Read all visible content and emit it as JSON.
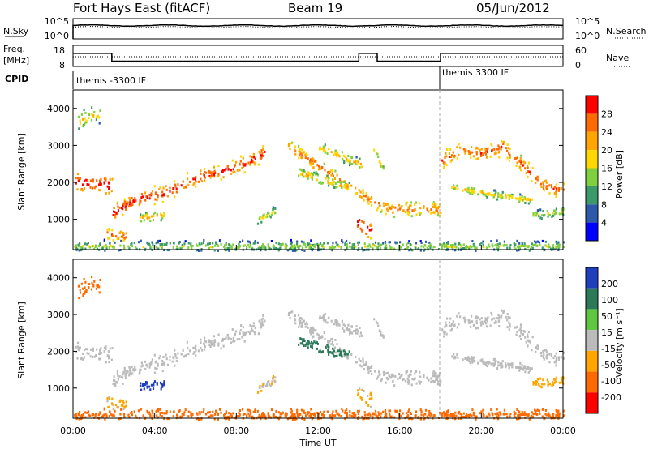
{
  "header": {
    "station": "Fort Hays East (fitACF)",
    "beam": "Beam 19",
    "date": "05/Jun/2012"
  },
  "strip": {
    "nsky_label": "N.Sky",
    "nsearch_label": "N.Search",
    "freq_label_1": "Freq.",
    "freq_label_2": "[MHz]",
    "nave_label": "Nave",
    "cpid_label": "CPID",
    "noise_left_ticks": [
      "10^5",
      "10^0"
    ],
    "noise_right_ticks": [
      "10^5",
      "10^0"
    ],
    "freq_left_ticks": [
      "18",
      "8"
    ],
    "freq_right_ticks": [
      "60",
      "0"
    ],
    "cpid_segments": [
      "themis -3300 IF",
      "themis 3300 IF"
    ]
  },
  "panels": {
    "power_ylabel": "Slant Range [km]",
    "velocity_ylabel": "Slant Range [km]",
    "yticks": [
      "4000",
      "3000",
      "2000",
      "1000"
    ],
    "xticks": [
      "00:00",
      "04:00",
      "08:00",
      "12:00",
      "16:00",
      "20:00",
      "00:00"
    ],
    "xlabel": "Time UT"
  },
  "colorbars": {
    "power": {
      "title": "Power [dB]",
      "ticks": [
        "28",
        "24",
        "20",
        "16",
        "12",
        "8",
        "4"
      ],
      "colors": [
        "#ff0000",
        "#ff6a00",
        "#ffa500",
        "#ffd700",
        "#7fcf3f",
        "#3c9a6a",
        "#2c5aa8",
        "#0000ff"
      ]
    },
    "velocity": {
      "title": "Velocity [m s⁻¹]",
      "ticks": [
        "200",
        "100",
        "50",
        "15",
        "-15",
        "-50",
        "-100",
        "-200"
      ],
      "colors": [
        "#1f3fbf",
        "#2a7a5a",
        "#5fc840",
        "#bbbbbb",
        "#ffa500",
        "#ff6a00",
        "#ff0000"
      ]
    }
  },
  "chart_data": {
    "type": "heatmap",
    "title": "Fort Hays East (fitACF)   Beam 19   05/Jun/2012",
    "xlabel": "Time UT",
    "ylabel": "Slant Range [km]",
    "xlim": [
      0,
      24
    ],
    "ylim": [
      180,
      4500
    ],
    "noise_range": [
      1,
      100000
    ],
    "frequency_mhz": [
      {
        "t0": 0.0,
        "t1": 1.9,
        "freq": 14.2
      },
      {
        "t0": 1.9,
        "t1": 14.0,
        "freq": 10.5
      },
      {
        "t0": 14.0,
        "t1": 14.9,
        "freq": 14.2
      },
      {
        "t0": 14.9,
        "t1": 18.0,
        "freq": 10.5
      },
      {
        "t0": 18.0,
        "t1": 24.0,
        "freq": 14.2
      }
    ],
    "cpid_transition_hour": 18.0,
    "echo_bands": [
      {
        "pts": [
          [
            0.0,
            2050
          ],
          [
            1.9,
            1950
          ]
        ],
        "width": 280,
        "power": 22,
        "velocity": -5
      },
      {
        "pts": [
          [
            1.9,
            1200
          ],
          [
            3.0,
            1550
          ],
          [
            4.5,
            1750
          ],
          [
            6.0,
            2150
          ],
          [
            8.0,
            2450
          ],
          [
            9.5,
            2850
          ]
        ],
        "width": 260,
        "power": 20,
        "velocity": -5
      },
      {
        "pts": [
          [
            1.6,
            640
          ],
          [
            2.6,
            580
          ]
        ],
        "width": 180,
        "power": 18,
        "velocity": -20
      },
      {
        "pts": [
          [
            3.2,
            1050
          ],
          [
            4.5,
            1150
          ]
        ],
        "width": 150,
        "power": 12,
        "velocity": 150
      },
      {
        "pts": [
          [
            0.2,
            3700
          ],
          [
            1.3,
            3900
          ]
        ],
        "width": 300,
        "power": 10,
        "velocity": -60
      },
      {
        "pts": [
          [
            9.0,
            1000
          ],
          [
            10.0,
            1300
          ]
        ],
        "width": 160,
        "power": 8,
        "velocity": -10
      },
      {
        "pts": [
          [
            10.5,
            3000
          ],
          [
            12.5,
            2300
          ],
          [
            14.5,
            1550
          ],
          [
            15.5,
            1300
          ],
          [
            18.0,
            1300
          ]
        ],
        "width": 230,
        "power": 16,
        "velocity": -5
      },
      {
        "pts": [
          [
            11.0,
            2300
          ],
          [
            12.5,
            2050
          ],
          [
            13.5,
            1900
          ]
        ],
        "width": 150,
        "power": 12,
        "velocity": 60
      },
      {
        "pts": [
          [
            12.0,
            3000
          ],
          [
            13.0,
            2750
          ],
          [
            14.2,
            2500
          ]
        ],
        "width": 160,
        "power": 12,
        "velocity": -5
      },
      {
        "pts": [
          [
            13.9,
            950
          ],
          [
            14.6,
            700
          ]
        ],
        "width": 220,
        "power": 24,
        "velocity": -20
      },
      {
        "pts": [
          [
            14.7,
            2950
          ],
          [
            15.2,
            2300
          ]
        ],
        "width": 140,
        "power": 10,
        "velocity": -5
      },
      {
        "pts": [
          [
            18.0,
            2600
          ],
          [
            19.0,
            2950
          ],
          [
            20.0,
            2800
          ],
          [
            21.0,
            3000
          ],
          [
            22.0,
            2500
          ],
          [
            23.0,
            1950
          ],
          [
            24.0,
            1800
          ]
        ],
        "width": 260,
        "power": 18,
        "velocity": -5
      },
      {
        "pts": [
          [
            18.5,
            1900
          ],
          [
            20.5,
            1700
          ],
          [
            22.5,
            1550
          ]
        ],
        "width": 140,
        "power": 10,
        "velocity": -5
      },
      {
        "pts": [
          [
            22.5,
            1150
          ],
          [
            24.0,
            1250
          ]
        ],
        "width": 150,
        "power": 8,
        "velocity": -30
      },
      {
        "pts": [
          [
            0.0,
            300
          ],
          [
            24.0,
            300
          ]
        ],
        "width": 180,
        "power": 6,
        "velocity": -60
      }
    ]
  }
}
